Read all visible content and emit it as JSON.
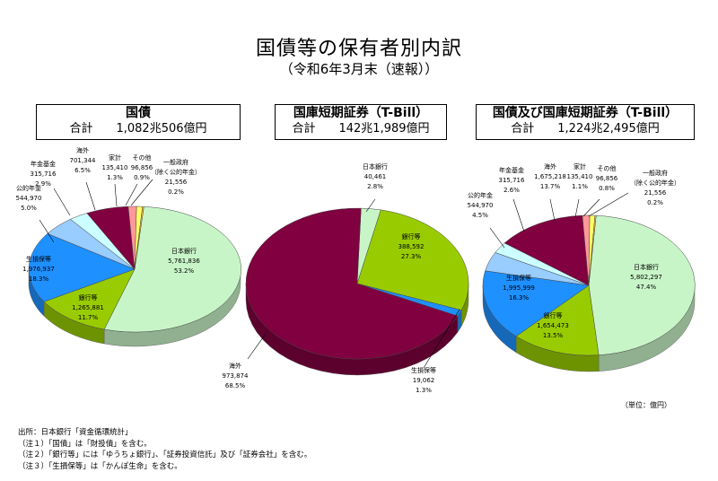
{
  "header": {
    "title": "国債等の保有者別内訳",
    "subtitle": "（令和6年3月末（速報））",
    "unit": "（単位：億円）"
  },
  "notes": [
    "出所：日本銀行「資金循環統計」",
    "（注１）「国債」は「財投債」を含む。",
    "（注２）「銀行等」には「ゆうちょ銀行」、「証券投資信託」及び「証券会社」を含む。",
    "（注３）「生損保等」は「かんぽ生命」を含む。"
  ],
  "colors": {
    "日本銀行": "#c8f5c8",
    "銀行等": "#99cc00",
    "生損保等": "#1e90ff",
    "公的年金": "#99ccff",
    "年金基金": "#ccffff",
    "海外": "#800040",
    "家計": "#ff9999",
    "その他": "#ffff66",
    "一般政府（除く公的年金）": "#ffcc33"
  },
  "boxes": [
    {
      "title": "国債",
      "total": "合計　　1,082兆506億円"
    },
    {
      "title": "国庫短期証券（T-Bill）",
      "total": "合計　　142兆1,989億円"
    },
    {
      "title": "国債及び国庫短期証券（T-Bill）",
      "total": "合計　　1,224兆2,495億円"
    }
  ],
  "chart_data": [
    {
      "type": "pie",
      "title": "国債",
      "total_label": "合計　　1,082兆506億円",
      "slices": [
        {
          "name": "日本銀行",
          "value": 5761836,
          "value_label": "5,761,836",
          "pct_label": "53.2%"
        },
        {
          "name": "銀行等",
          "value": 1265881,
          "value_label": "1,265,881",
          "pct_label": "11.7%"
        },
        {
          "name": "生損保等",
          "value": 1976937,
          "value_label": "1,976,937",
          "pct_label": "18.3%"
        },
        {
          "name": "公的年金",
          "value": 544970,
          "value_label": "544,970",
          "pct_label": "5.0%"
        },
        {
          "name": "年金基金",
          "value": 315716,
          "value_label": "315,716",
          "pct_label": "2.9%"
        },
        {
          "name": "海外",
          "value": 701344,
          "value_label": "701,344",
          "pct_label": "6.5%"
        },
        {
          "name": "家計",
          "value": 135410,
          "value_label": "135,410",
          "pct_label": "1.3%"
        },
        {
          "name": "その他",
          "value": 96856,
          "value_label": "96,856",
          "pct_label": "0.9%"
        },
        {
          "name": "一般政府（除く公的年金）",
          "value": 21556,
          "value_label": "21,556",
          "pct_label": "0.2%"
        }
      ]
    },
    {
      "type": "pie",
      "title": "国庫短期証券（T-Bill）",
      "total_label": "合計　　142兆1,989億円",
      "slices": [
        {
          "name": "日本銀行",
          "value": 40461,
          "value_label": "40,461",
          "pct_label": "2.8%"
        },
        {
          "name": "銀行等",
          "value": 388592,
          "value_label": "388,592",
          "pct_label": "27.3%"
        },
        {
          "name": "生損保等",
          "value": 19062,
          "value_label": "19,062",
          "pct_label": "1.3%"
        },
        {
          "name": "海外",
          "value": 973874,
          "value_label": "973,874",
          "pct_label": "68.5%"
        }
      ]
    },
    {
      "type": "pie",
      "title": "国債及び国庫短期証券（T-Bill）",
      "total_label": "合計　　1,224兆2,495億円",
      "slices": [
        {
          "name": "日本銀行",
          "value": 5802297,
          "value_label": "5,802,297",
          "pct_label": "47.4%"
        },
        {
          "name": "銀行等",
          "value": 1654473,
          "value_label": "1,654,473",
          "pct_label": "13.5%"
        },
        {
          "name": "生損保等",
          "value": 1995999,
          "value_label": "1,995,999",
          "pct_label": "16.3%"
        },
        {
          "name": "公的年金",
          "value": 544970,
          "value_label": "544,970",
          "pct_label": "4.5%"
        },
        {
          "name": "年金基金",
          "value": 315716,
          "value_label": "315,716",
          "pct_label": "2.6%"
        },
        {
          "name": "海外",
          "value": 1675218,
          "value_label": "1,675,218",
          "pct_label": "13.7%"
        },
        {
          "name": "家計",
          "value": 135410,
          "value_label": "135,410",
          "pct_label": "1.1%"
        },
        {
          "name": "その他",
          "value": 96856,
          "value_label": "96,856",
          "pct_label": "0.8%"
        },
        {
          "name": "一般政府（除く公的年金）",
          "value": 21556,
          "value_label": "21,556",
          "pct_label": "0.2%"
        }
      ]
    }
  ]
}
